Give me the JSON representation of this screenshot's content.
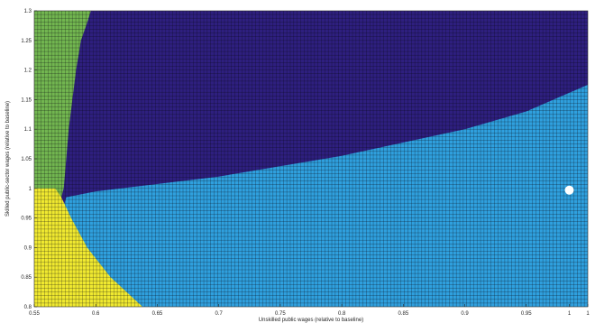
{
  "chart_data": {
    "type": "heatmap",
    "title": "",
    "xlabel": "Unskilled public wages (relative to baseline)",
    "ylabel": "Skilled public-sector wages (relative to baseline)",
    "xlim": [
      0.55,
      1.0
    ],
    "ylim": [
      0.8,
      1.3
    ],
    "x_ticks": [
      "0.55",
      "0.6",
      "0.65",
      "0.7",
      "0.75",
      "0.8",
      "0.85",
      "0.9",
      "0.95",
      "1",
      "1"
    ],
    "y_ticks": [
      "0.8",
      "0.85",
      "0.9",
      "0.95",
      "1",
      "1.05",
      "1.1",
      "1.15",
      "1.2",
      "1.25",
      "1.3"
    ],
    "grid": true,
    "regions": [
      {
        "color": "#72b650",
        "description": "green region, top-left"
      },
      {
        "color": "#f0e930",
        "description": "yellow region, bottom-left"
      },
      {
        "color": "#2e1f7f",
        "description": "dark purple region, upper"
      },
      {
        "color": "#2fa0de",
        "description": "light blue region, lower-right"
      }
    ],
    "boundaries": {
      "green_right_edge": [
        [
          1.3,
          0.596
        ],
        [
          1.28,
          0.593
        ],
        [
          1.25,
          0.588
        ],
        [
          1.2,
          0.584
        ],
        [
          1.15,
          0.581
        ],
        [
          1.1,
          0.578
        ],
        [
          1.05,
          0.576
        ],
        [
          1.0,
          0.574
        ],
        [
          0.985,
          0.572
        ]
      ],
      "purple_blue_boundary": [
        [
          0.576,
          0.985
        ],
        [
          0.6,
          0.995
        ],
        [
          0.7,
          1.02
        ],
        [
          0.8,
          1.055
        ],
        [
          0.9,
          1.1
        ],
        [
          0.95,
          1.13
        ],
        [
          1.0,
          1.175
        ]
      ],
      "yellow_right_edge": [
        [
          1.0,
          0.567
        ],
        [
          0.985,
          0.572
        ],
        [
          0.95,
          0.58
        ],
        [
          0.9,
          0.593
        ],
        [
          0.85,
          0.612
        ],
        [
          0.8,
          0.638
        ]
      ]
    },
    "marker": {
      "x": 0.985,
      "y": 0.997,
      "color": "#ffffff"
    }
  }
}
